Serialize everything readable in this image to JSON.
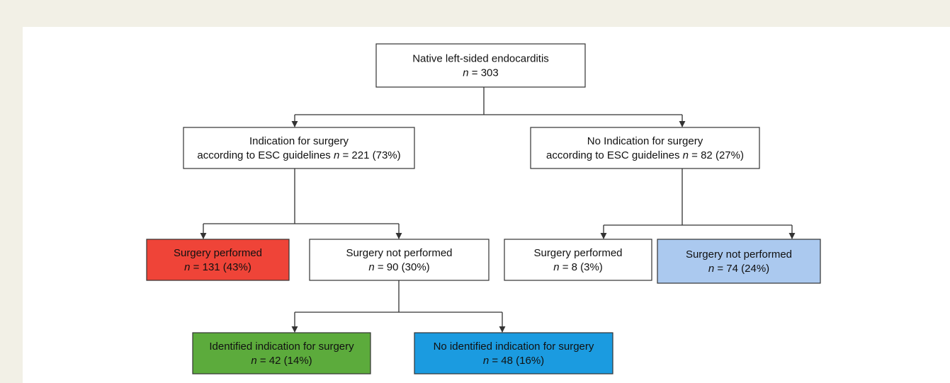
{
  "nodes": [
    {
      "lines": [
        [
          {
            "text": "Native left-sided endocarditis"
          }
        ],
        [
          {
            "text": "n",
            "italic": true
          },
          {
            "text": " = 303"
          }
        ]
      ]
    },
    {
      "lines": [
        [
          {
            "text": "Indication for surgery"
          }
        ],
        [
          {
            "text": "according to ESC guidelines "
          },
          {
            "text": "n",
            "italic": true
          },
          {
            "text": " = 221 (73%)"
          }
        ]
      ]
    },
    {
      "lines": [
        [
          {
            "text": "No Indication for surgery"
          }
        ],
        [
          {
            "text": "according to ESC guidelines "
          },
          {
            "text": "n",
            "italic": true
          },
          {
            "text": " = 82 (27%)"
          }
        ]
      ]
    },
    {
      "lines": [
        [
          {
            "text": "Surgery performed"
          }
        ],
        [
          {
            "text": "n",
            "italic": true
          },
          {
            "text": " = 131 (43%)"
          }
        ]
      ],
      "color": "#ef4438"
    },
    {
      "lines": [
        [
          {
            "text": "Surgery not performed"
          }
        ],
        [
          {
            "text": "n",
            "italic": true
          },
          {
            "text": " = 90 (30%)"
          }
        ]
      ]
    },
    {
      "lines": [
        [
          {
            "text": "Surgery performed"
          }
        ],
        [
          {
            "text": "n",
            "italic": true
          },
          {
            "text": " = 8 (3%)"
          }
        ]
      ]
    },
    {
      "lines": [
        [
          {
            "text": "Surgery not performed"
          }
        ],
        [
          {
            "text": "n",
            "italic": true
          },
          {
            "text": " = 74 (24%)"
          }
        ]
      ],
      "color": "#abc9ef"
    },
    {
      "lines": [
        [
          {
            "text": "Identified indication for surgery"
          }
        ],
        [
          {
            "text": "n",
            "italic": true
          },
          {
            "text": " = 42 (14%)"
          }
        ]
      ],
      "color": "#5cab3c"
    },
    {
      "lines": [
        [
          {
            "text": "No identified indication for surgery"
          }
        ],
        [
          {
            "text": "n",
            "italic": true
          },
          {
            "text": " = 48 (16%)"
          }
        ]
      ],
      "color": "#1b9be0"
    }
  ]
}
